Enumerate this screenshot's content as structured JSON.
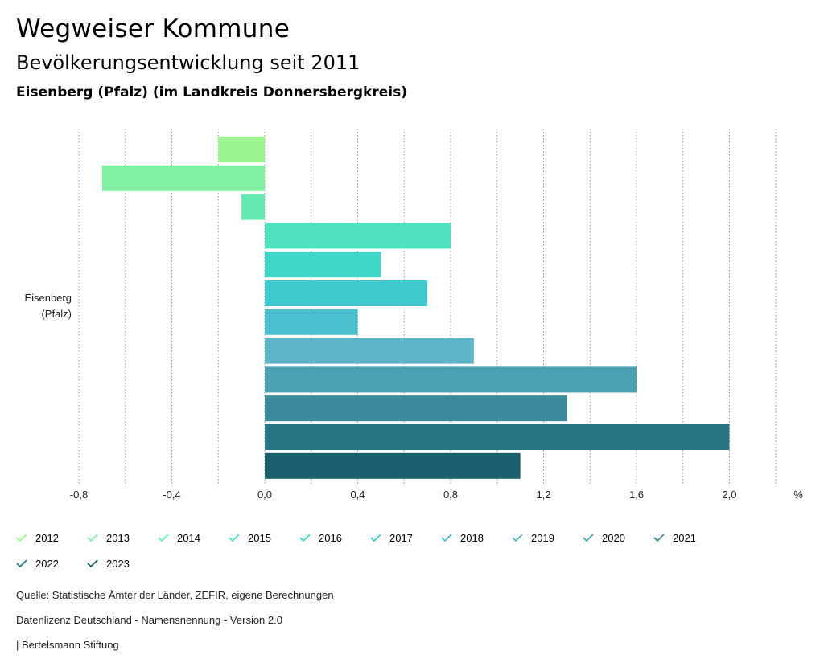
{
  "header": {
    "title": "Wegweiser Kommune",
    "subtitle": "Bevölkerungsentwicklung seit 2011",
    "place": "Eisenberg (Pfalz) (im Landkreis Donnersbergkreis)"
  },
  "chart_data": {
    "type": "bar",
    "orientation": "horizontal",
    "category": [
      "Eisenberg",
      "(Pfalz)"
    ],
    "unit": "%",
    "xlim": [
      -0.9,
      2.2
    ],
    "ticks": [
      "-0,8",
      "-0,4",
      "0,0",
      "0,4",
      "0,8",
      "1,2",
      "1,6",
      "2,0"
    ],
    "tick_values": [
      -0.8,
      -0.4,
      0.0,
      0.4,
      0.8,
      1.2,
      1.6,
      2.0
    ],
    "grid_values": [
      -0.8,
      -0.6,
      -0.4,
      -0.2,
      0.0,
      0.2,
      0.4,
      0.6,
      0.8,
      1.0,
      1.2,
      1.4,
      1.6,
      1.8,
      2.0,
      2.2
    ],
    "series": [
      {
        "name": "2012",
        "value": -0.2,
        "color": "#9af58f"
      },
      {
        "name": "2013",
        "value": -0.7,
        "color": "#80f1a1"
      },
      {
        "name": "2014",
        "value": -0.1,
        "color": "#64e9b3"
      },
      {
        "name": "2015",
        "value": 0.8,
        "color": "#4fe1c0"
      },
      {
        "name": "2016",
        "value": 0.5,
        "color": "#40d7c8"
      },
      {
        "name": "2017",
        "value": 0.7,
        "color": "#3ecace"
      },
      {
        "name": "2018",
        "value": 0.4,
        "color": "#4cbfcf"
      },
      {
        "name": "2019",
        "value": 0.9,
        "color": "#5db5c8"
      },
      {
        "name": "2020",
        "value": 1.6,
        "color": "#4ba0b2"
      },
      {
        "name": "2021",
        "value": 1.3,
        "color": "#3b8b9c"
      },
      {
        "name": "2022",
        "value": 2.0,
        "color": "#2a7585"
      },
      {
        "name": "2023",
        "value": 1.1,
        "color": "#1a5f6d"
      }
    ]
  },
  "footer": {
    "source": "Quelle: Statistische Ämter der Länder, ZEFIR, eigene Berechnungen",
    "license": "Datenlizenz Deutschland - Namensnennung - Version 2.0",
    "brand": "| Bertelsmann Stiftung"
  }
}
